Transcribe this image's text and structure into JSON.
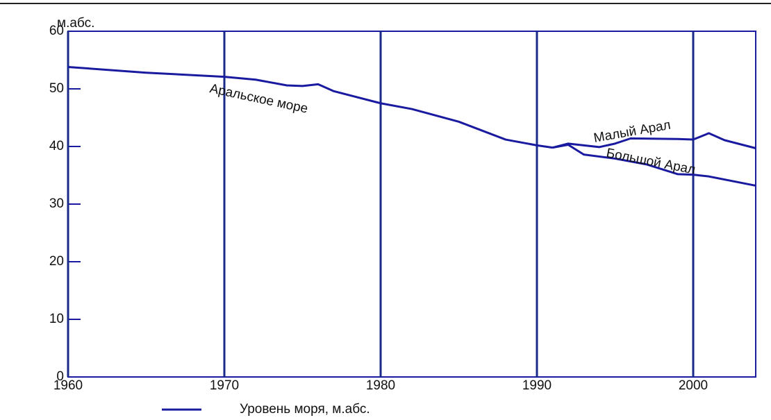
{
  "chart_data": {
    "type": "line",
    "y_label": "м.абс.",
    "xlim": [
      1960,
      2004
    ],
    "ylim": [
      0,
      60
    ],
    "xticks": [
      1960,
      1970,
      1980,
      1990,
      2000
    ],
    "yticks": [
      0,
      10,
      20,
      30,
      40,
      50,
      60
    ],
    "grid": "x",
    "color": "#1a1aa0",
    "legend": {
      "label": "Уровень моря, м.абс.",
      "position": "bottom"
    },
    "series": [
      {
        "name": "Аральское море",
        "color": "#1a1aa0",
        "x": [
          1960,
          1965,
          1970,
          1972,
          1974,
          1975,
          1976,
          1977,
          1980,
          1982,
          1985,
          1988,
          1990,
          1991
        ],
        "values": [
          53.8,
          52.8,
          52.1,
          51.6,
          50.6,
          50.5,
          50.8,
          49.6,
          47.5,
          46.5,
          44.3,
          41.2,
          40.2,
          39.8
        ]
      },
      {
        "name": "Малый Арал",
        "color": "#1a1aa0",
        "x": [
          1991,
          1992,
          1994,
          1995,
          1996,
          1999,
          2000,
          2001,
          2002,
          2004
        ],
        "values": [
          39.8,
          40.5,
          39.9,
          40.5,
          41.4,
          41.3,
          41.2,
          42.3,
          41.1,
          39.7
        ]
      },
      {
        "name": "Большой Арал",
        "color": "#1a1aa0",
        "x": [
          1991,
          1992,
          1993,
          1995,
          1997,
          1999,
          2000,
          2001,
          2004
        ],
        "values": [
          39.8,
          40.3,
          38.6,
          37.9,
          36.9,
          35.2,
          35.1,
          34.8,
          33.2
        ]
      }
    ]
  }
}
